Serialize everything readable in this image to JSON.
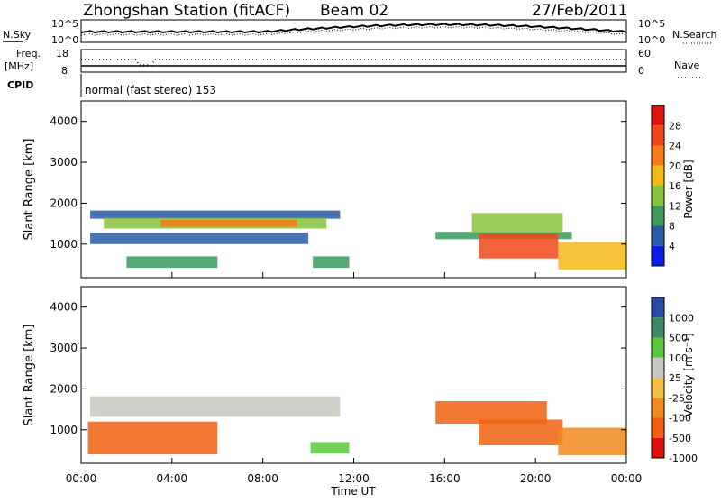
{
  "header": {
    "station": "Zhongshan Station (fitACF)",
    "beam": "Beam 02",
    "date": "27/Feb/2011"
  },
  "noise_panel": {
    "left_label": "N.Sky",
    "right_label": "N.Search",
    "left_ticks": [
      "10^5",
      "10^0"
    ],
    "right_ticks": [
      "10^5",
      "10^0"
    ]
  },
  "freq_panel": {
    "left_label_1": "Freq.",
    "left_label_2": "[MHz]",
    "right_label": "Nave",
    "left_ticks": [
      "18",
      "8"
    ],
    "right_ticks": [
      "60",
      "0"
    ]
  },
  "cpid_panel": {
    "label": "CPID",
    "text": "normal (fast stereo) 153"
  },
  "colorbars": {
    "power": {
      "title": "Power [dB]",
      "ticks": [
        "28",
        "24",
        "20",
        "16",
        "12",
        "8",
        "4"
      ],
      "colors": [
        "#e0140f",
        "#f0461a",
        "#f87a18",
        "#f4b818",
        "#8ac23c",
        "#3a9a5a",
        "#2a5aa8",
        "#0a1ee8"
      ]
    },
    "velocity": {
      "title": "Velocity [m s⁻¹]",
      "ticks": [
        "1000",
        "500",
        "100",
        "25",
        "-25",
        "-100",
        "-500",
        "-1000"
      ],
      "colors": [
        "#2a4aa8",
        "#3a8a6a",
        "#5ac83a",
        "#c8c8c0",
        "#f4c040",
        "#f08a20",
        "#f06010",
        "#e01010"
      ]
    }
  },
  "chart_data": [
    {
      "type": "heatmap",
      "title": "",
      "xlabel": "Time UT",
      "ylabel": "Slant Range [km]",
      "x_ticks": [
        "00:00",
        "04:00",
        "08:00",
        "12:00",
        "16:00",
        "20:00",
        "00:00"
      ],
      "y_ticks": [
        "1000",
        "2000",
        "3000",
        "4000"
      ],
      "xlim_hours": [
        0,
        24
      ],
      "ylim_km": [
        180,
        4500
      ],
      "regions": [
        {
          "t0": 0.4,
          "t1": 11.4,
          "r0": 1620,
          "r1": 1820,
          "level": 1
        },
        {
          "t0": 1.0,
          "t1": 10.8,
          "r0": 1380,
          "r1": 1640,
          "level": 3
        },
        {
          "t0": 3.5,
          "t1": 9.5,
          "r0": 1420,
          "r1": 1600,
          "level": 5
        },
        {
          "t0": 0.4,
          "t1": 10.0,
          "r0": 1000,
          "r1": 1280,
          "level": 1
        },
        {
          "t0": 2.0,
          "t1": 6.0,
          "r0": 420,
          "r1": 700,
          "level": 2
        },
        {
          "t0": 10.2,
          "t1": 11.8,
          "r0": 420,
          "r1": 700,
          "level": 2
        },
        {
          "t0": 15.6,
          "t1": 21.6,
          "r0": 1120,
          "r1": 1300,
          "level": 2
        },
        {
          "t0": 17.5,
          "t1": 21.0,
          "r0": 650,
          "r1": 1250,
          "level": 6
        },
        {
          "t0": 17.2,
          "t1": 21.2,
          "r0": 1280,
          "r1": 1760,
          "level": 3
        },
        {
          "t0": 21.0,
          "t1": 24.0,
          "r0": 380,
          "r1": 1050,
          "level": 4
        }
      ]
    },
    {
      "type": "heatmap",
      "title": "",
      "xlabel": "Time UT",
      "ylabel": "Slant Range [km]",
      "x_ticks": [
        "00:00",
        "04:00",
        "08:00",
        "12:00",
        "16:00",
        "20:00",
        "00:00"
      ],
      "y_ticks": [
        "1000",
        "2000",
        "3000",
        "4000"
      ],
      "xlim_hours": [
        0,
        24
      ],
      "ylim_km": [
        180,
        4500
      ],
      "regions": [
        {
          "t0": 0.4,
          "t1": 11.4,
          "r0": 1320,
          "r1": 1820,
          "level": 3
        },
        {
          "t0": 0.3,
          "t1": 6.0,
          "r0": 400,
          "r1": 1200,
          "level": 6
        },
        {
          "t0": 10.1,
          "t1": 11.8,
          "r0": 420,
          "r1": 700,
          "level": 2
        },
        {
          "t0": 15.6,
          "t1": 20.5,
          "r0": 1150,
          "r1": 1700,
          "level": 6
        },
        {
          "t0": 17.5,
          "t1": 21.2,
          "r0": 620,
          "r1": 1250,
          "level": 6
        },
        {
          "t0": 21.0,
          "t1": 24.0,
          "r0": 380,
          "r1": 1050,
          "level": 5
        }
      ]
    }
  ]
}
